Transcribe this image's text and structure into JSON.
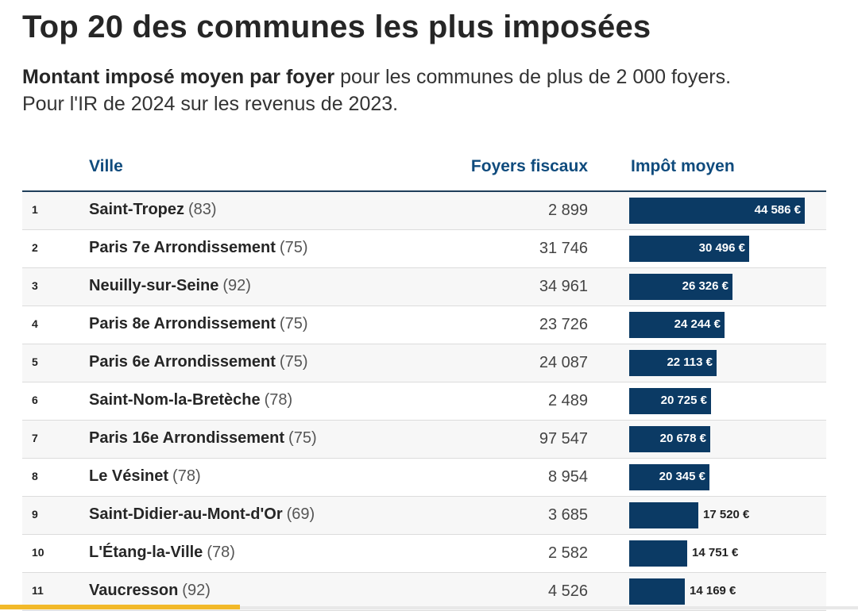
{
  "title": "Top 20 des communes les plus imposées",
  "subtitle_strong": "Montant imposé moyen par foyer",
  "subtitle_rest": " pour les communes de plus de 2 000 foyers.",
  "subtitle_line2": "Pour l'IR de 2024 sur les revenus de 2023.",
  "chart_data": {
    "type": "table",
    "columns": [
      "Ville",
      "Foyers fiscaux",
      "Impôt moyen"
    ],
    "rows": [
      {
        "rank": "1",
        "name": "Saint-Tropez",
        "dept": "(83)",
        "foyers": "2 899",
        "impot": 44586,
        "impot_label": "44 586 €"
      },
      {
        "rank": "2",
        "name": "Paris 7e Arrondissement",
        "dept": "(75)",
        "foyers": "31 746",
        "impot": 30496,
        "impot_label": "30 496 €"
      },
      {
        "rank": "3",
        "name": "Neuilly-sur-Seine",
        "dept": "(92)",
        "foyers": "34 961",
        "impot": 26326,
        "impot_label": "26 326 €"
      },
      {
        "rank": "4",
        "name": "Paris 8e Arrondissement",
        "dept": "(75)",
        "foyers": "23 726",
        "impot": 24244,
        "impot_label": "24 244 €"
      },
      {
        "rank": "5",
        "name": "Paris 6e Arrondissement",
        "dept": "(75)",
        "foyers": "24 087",
        "impot": 22113,
        "impot_label": "22 113 €"
      },
      {
        "rank": "6",
        "name": "Saint-Nom-la-Bretèche",
        "dept": "(78)",
        "foyers": "2 489",
        "impot": 20725,
        "impot_label": "20 725 €"
      },
      {
        "rank": "7",
        "name": "Paris 16e Arrondissement",
        "dept": "(75)",
        "foyers": "97 547",
        "impot": 20678,
        "impot_label": "20 678 €"
      },
      {
        "rank": "8",
        "name": "Le Vésinet",
        "dept": "(78)",
        "foyers": "8 954",
        "impot": 20345,
        "impot_label": "20 345 €"
      },
      {
        "rank": "9",
        "name": "Saint-Didier-au-Mont-d'Or",
        "dept": "(69)",
        "foyers": "3 685",
        "impot": 17520,
        "impot_label": "17 520 €"
      },
      {
        "rank": "10",
        "name": "L'Étang-la-Ville",
        "dept": "(78)",
        "foyers": "2 582",
        "impot": 14751,
        "impot_label": "14 751 €"
      },
      {
        "rank": "11",
        "name": "Vaucresson",
        "dept": "(92)",
        "foyers": "4 526",
        "impot": 14169,
        "impot_label": "14 169 €"
      }
    ],
    "bar_max_value": 44586,
    "bar_color": "#0b3a64"
  }
}
